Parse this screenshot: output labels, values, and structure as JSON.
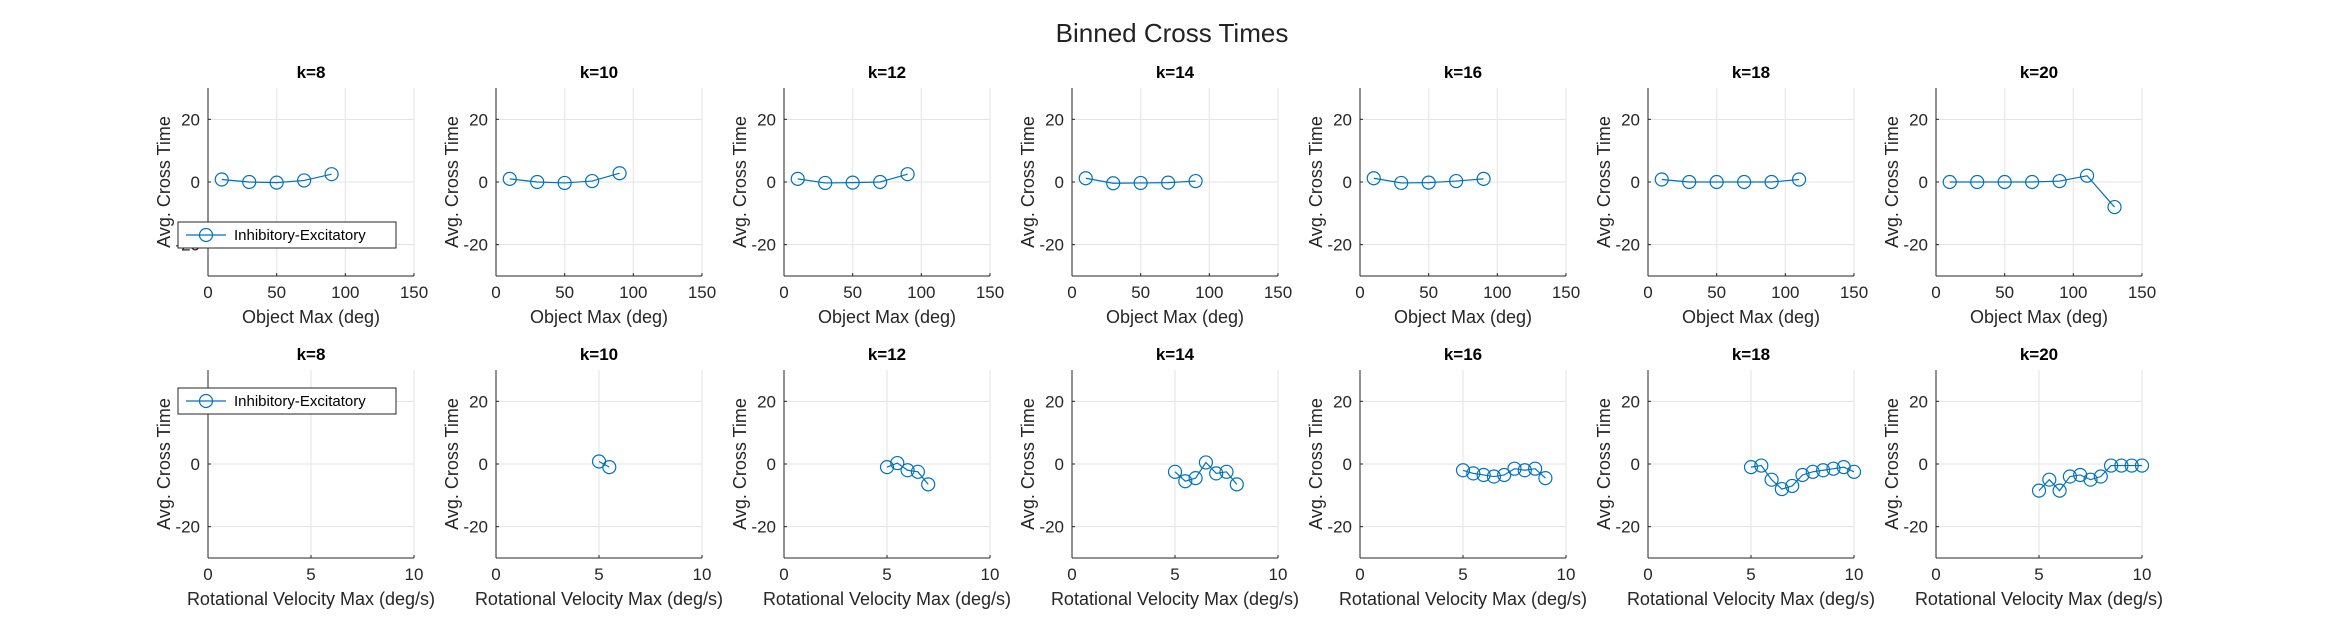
{
  "figure": {
    "title": "Binned Cross Times",
    "series_color": "#0072BD",
    "legend_label": "Inhibitory-Excitatory"
  },
  "chart_data": [
    {
      "type": "line",
      "row": 1,
      "title": "k=8",
      "xlabel": "Object Max (deg)",
      "ylabel": "Avg. Cross Time",
      "xlim": [
        0,
        150
      ],
      "ylim": [
        -30,
        30
      ],
      "xticks": [
        0,
        50,
        100,
        150
      ],
      "yticks": [
        -20,
        0,
        20
      ],
      "grid": true,
      "legend": "bottom-left",
      "series": [
        {
          "name": "Inhibitory-Excitatory",
          "x": [
            10,
            30,
            50,
            70,
            90
          ],
          "y": [
            0.8,
            0,
            -0.2,
            0.5,
            2.5
          ]
        }
      ]
    },
    {
      "type": "line",
      "row": 1,
      "title": "k=10",
      "xlabel": "Object Max (deg)",
      "ylabel": "Avg. Cross Time",
      "xlim": [
        0,
        150
      ],
      "ylim": [
        -30,
        30
      ],
      "xticks": [
        0,
        50,
        100,
        150
      ],
      "yticks": [
        -20,
        0,
        20
      ],
      "grid": true,
      "series": [
        {
          "name": "Inhibitory-Excitatory",
          "x": [
            10,
            30,
            50,
            70,
            90
          ],
          "y": [
            1,
            0,
            -0.3,
            0.3,
            2.8
          ]
        }
      ]
    },
    {
      "type": "line",
      "row": 1,
      "title": "k=12",
      "xlabel": "Object Max (deg)",
      "ylabel": "Avg. Cross Time",
      "xlim": [
        0,
        150
      ],
      "ylim": [
        -30,
        30
      ],
      "xticks": [
        0,
        50,
        100,
        150
      ],
      "yticks": [
        -20,
        0,
        20
      ],
      "grid": true,
      "series": [
        {
          "name": "Inhibitory-Excitatory",
          "x": [
            10,
            30,
            50,
            70,
            90
          ],
          "y": [
            1,
            -0.3,
            -0.2,
            0,
            2.5
          ]
        }
      ]
    },
    {
      "type": "line",
      "row": 1,
      "title": "k=14",
      "xlabel": "Object Max (deg)",
      "ylabel": "Avg. Cross Time",
      "xlim": [
        0,
        150
      ],
      "ylim": [
        -30,
        30
      ],
      "xticks": [
        0,
        50,
        100,
        150
      ],
      "yticks": [
        -20,
        0,
        20
      ],
      "grid": true,
      "series": [
        {
          "name": "Inhibitory-Excitatory",
          "x": [
            10,
            30,
            50,
            70,
            90
          ],
          "y": [
            1.2,
            -0.4,
            -0.3,
            -0.2,
            0.3
          ]
        }
      ]
    },
    {
      "type": "line",
      "row": 1,
      "title": "k=16",
      "xlabel": "Object Max (deg)",
      "ylabel": "Avg. Cross Time",
      "xlim": [
        0,
        150
      ],
      "ylim": [
        -30,
        30
      ],
      "xticks": [
        0,
        50,
        100,
        150
      ],
      "yticks": [
        -20,
        0,
        20
      ],
      "grid": true,
      "series": [
        {
          "name": "Inhibitory-Excitatory",
          "x": [
            10,
            30,
            50,
            70,
            90
          ],
          "y": [
            1.2,
            -0.3,
            -0.2,
            0.3,
            1
          ]
        }
      ]
    },
    {
      "type": "line",
      "row": 1,
      "title": "k=18",
      "xlabel": "Object Max (deg)",
      "ylabel": "Avg. Cross Time",
      "xlim": [
        0,
        150
      ],
      "ylim": [
        -30,
        30
      ],
      "xticks": [
        0,
        50,
        100,
        150
      ],
      "yticks": [
        -20,
        0,
        20
      ],
      "grid": true,
      "series": [
        {
          "name": "Inhibitory-Excitatory",
          "x": [
            10,
            30,
            50,
            70,
            90,
            110
          ],
          "y": [
            0.8,
            0,
            0,
            0,
            0,
            0.8
          ]
        }
      ]
    },
    {
      "type": "line",
      "row": 1,
      "title": "k=20",
      "xlabel": "Object Max (deg)",
      "ylabel": "Avg. Cross Time",
      "xlim": [
        0,
        150
      ],
      "ylim": [
        -30,
        30
      ],
      "xticks": [
        0,
        50,
        100,
        150
      ],
      "yticks": [
        -20,
        0,
        20
      ],
      "grid": true,
      "series": [
        {
          "name": "Inhibitory-Excitatory",
          "x": [
            10,
            30,
            50,
            70,
            90,
            110,
            130
          ],
          "y": [
            0,
            0,
            0,
            0,
            0.3,
            2,
            -8
          ]
        }
      ]
    },
    {
      "type": "line",
      "row": 2,
      "title": "k=8",
      "xlabel": "Rotational Velocity Max (deg/s)",
      "ylabel": "Avg. Cross Time",
      "xlim": [
        0,
        10
      ],
      "ylim": [
        -30,
        30
      ],
      "xticks": [
        0,
        5,
        10
      ],
      "yticks": [
        -20,
        0,
        20
      ],
      "grid": true,
      "legend": "top-left",
      "series": [
        {
          "name": "Inhibitory-Excitatory",
          "x": [],
          "y": []
        }
      ]
    },
    {
      "type": "line",
      "row": 2,
      "title": "k=10",
      "xlabel": "Rotational Velocity Max (deg/s)",
      "ylabel": "Avg. Cross Time",
      "xlim": [
        0,
        10
      ],
      "ylim": [
        -30,
        30
      ],
      "xticks": [
        0,
        5,
        10
      ],
      "yticks": [
        -20,
        0,
        20
      ],
      "grid": true,
      "series": [
        {
          "name": "Inhibitory-Excitatory",
          "x": [
            5,
            5.5
          ],
          "y": [
            0.8,
            -1
          ]
        }
      ]
    },
    {
      "type": "line",
      "row": 2,
      "title": "k=12",
      "xlabel": "Rotational Velocity Max (deg/s)",
      "ylabel": "Avg. Cross Time",
      "xlim": [
        0,
        10
      ],
      "ylim": [
        -30,
        30
      ],
      "xticks": [
        0,
        5,
        10
      ],
      "yticks": [
        -20,
        0,
        20
      ],
      "grid": true,
      "series": [
        {
          "name": "Inhibitory-Excitatory",
          "x": [
            5,
            5.5,
            6,
            6.5,
            7
          ],
          "y": [
            -1,
            0.3,
            -2,
            -2.5,
            -6.5
          ]
        }
      ]
    },
    {
      "type": "line",
      "row": 2,
      "title": "k=14",
      "xlabel": "Rotational Velocity Max (deg/s)",
      "ylabel": "Avg. Cross Time",
      "xlim": [
        0,
        10
      ],
      "ylim": [
        -30,
        30
      ],
      "xticks": [
        0,
        5,
        10
      ],
      "yticks": [
        -20,
        0,
        20
      ],
      "grid": true,
      "series": [
        {
          "name": "Inhibitory-Excitatory",
          "x": [
            5,
            5.5,
            6,
            6.5,
            7,
            7.5,
            8
          ],
          "y": [
            -2.5,
            -5.5,
            -4.5,
            0.5,
            -3,
            -2.5,
            -6.5
          ]
        }
      ]
    },
    {
      "type": "line",
      "row": 2,
      "title": "k=16",
      "xlabel": "Rotational Velocity Max (deg/s)",
      "ylabel": "Avg. Cross Time",
      "xlim": [
        0,
        10
      ],
      "ylim": [
        -30,
        30
      ],
      "xticks": [
        0,
        5,
        10
      ],
      "yticks": [
        -20,
        0,
        20
      ],
      "grid": true,
      "series": [
        {
          "name": "Inhibitory-Excitatory",
          "x": [
            5,
            5.5,
            6,
            6.5,
            7,
            7.5,
            8,
            8.5,
            9
          ],
          "y": [
            -2,
            -3,
            -3.5,
            -4,
            -3.5,
            -1.5,
            -2,
            -1.5,
            -4.5
          ]
        }
      ]
    },
    {
      "type": "line",
      "row": 2,
      "title": "k=18",
      "xlabel": "Rotational Velocity Max (deg/s)",
      "ylabel": "Avg. Cross Time",
      "xlim": [
        0,
        10
      ],
      "ylim": [
        -30,
        30
      ],
      "xticks": [
        0,
        5,
        10
      ],
      "yticks": [
        -20,
        0,
        20
      ],
      "grid": true,
      "series": [
        {
          "name": "Inhibitory-Excitatory",
          "x": [
            5,
            5.5,
            6,
            6.5,
            7,
            7.5,
            8,
            8.5,
            9,
            9.5,
            10
          ],
          "y": [
            -1,
            -0.5,
            -5,
            -8,
            -7,
            -3.5,
            -2.5,
            -2,
            -1.5,
            -1,
            -2.5
          ]
        }
      ]
    },
    {
      "type": "line",
      "row": 2,
      "title": "k=20",
      "xlabel": "Rotational Velocity Max (deg/s)",
      "ylabel": "Avg. Cross Time",
      "xlim": [
        0,
        10
      ],
      "ylim": [
        -30,
        30
      ],
      "xticks": [
        0,
        5,
        10
      ],
      "yticks": [
        -20,
        0,
        20
      ],
      "grid": true,
      "series": [
        {
          "name": "Inhibitory-Excitatory",
          "x": [
            5,
            5.5,
            6,
            6.5,
            7,
            7.5,
            8,
            8.5,
            9,
            9.5,
            10
          ],
          "y": [
            -8.5,
            -5,
            -8.5,
            -4,
            -3.5,
            -5,
            -4,
            -0.5,
            -0.5,
            -0.5,
            -0.5
          ]
        }
      ]
    }
  ]
}
